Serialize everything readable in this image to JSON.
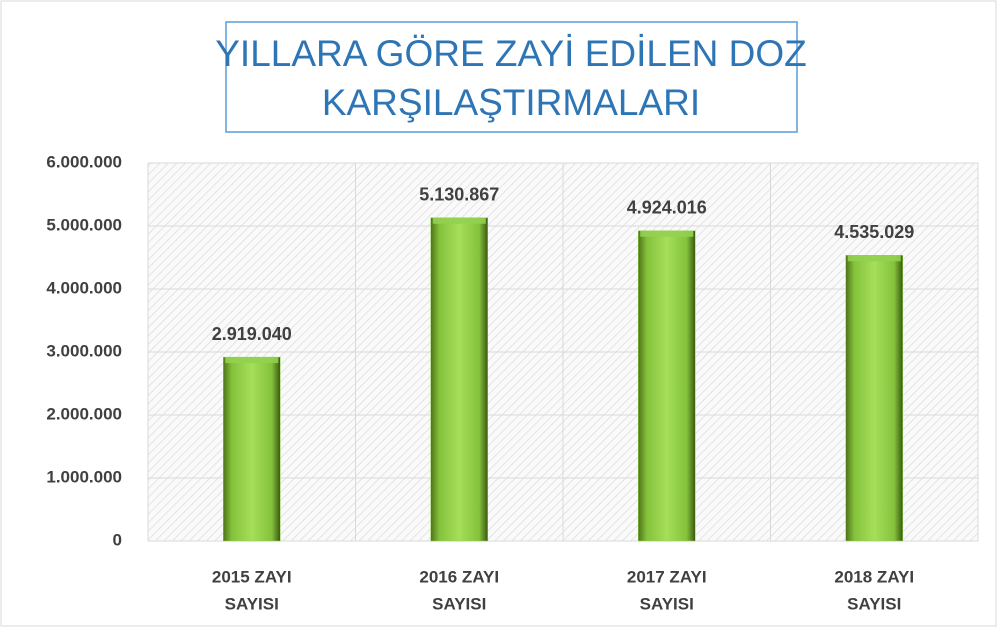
{
  "chart_data": {
    "type": "bar",
    "title": [
      "YILLARA GÖRE  ZAYİ EDİLEN  DOZ",
      "KARŞILAŞTIRMALARI"
    ],
    "categories": [
      [
        "2015  ZAYI",
        "SAYISI"
      ],
      [
        "2016 ZAYI",
        "SAYISI"
      ],
      [
        "2017  ZAYI",
        "SAYISI"
      ],
      [
        "2018  ZAYI",
        "SAYISI"
      ]
    ],
    "values": [
      2919040,
      5130867,
      4924016,
      4535029
    ],
    "value_labels": [
      "2.919.040",
      "5.130.867",
      "4.924.016",
      "4.535.029"
    ],
    "color": "#92d050",
    "ylim": [
      0,
      6000000
    ],
    "yticks": [
      0,
      {
        "value": 1000000,
        "label": "1.000.000"
      },
      {
        "value": 2000000,
        "label": "2.000.000"
      },
      {
        "value": 3000000,
        "label": "3.000.000"
      },
      {
        "value": 4000000,
        "label": "4.000.000"
      },
      {
        "value": 5000000,
        "label": "5.000.000"
      },
      {
        "value": 6000000,
        "label": "6.000.000"
      }
    ],
    "grid": true
  }
}
